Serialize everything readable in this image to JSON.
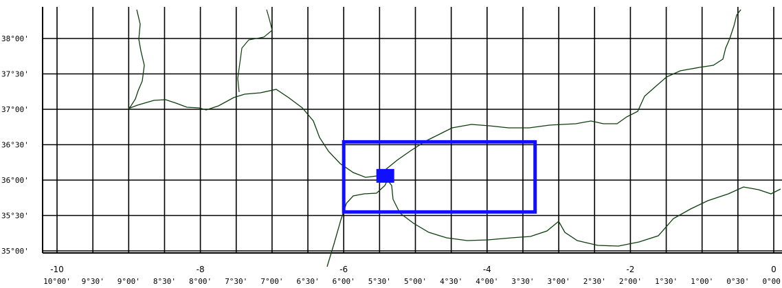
{
  "map": {
    "latitude_labels": [
      "38°00'",
      "37°30'",
      "37°00'",
      "36°30'",
      "36°00'",
      "35°30'",
      "35°00'"
    ],
    "longitude_labels": [
      "10°00'",
      "9°30'",
      "9°00'",
      "8°30'",
      "8°00'",
      "7°30'",
      "7°00'",
      "6°30'",
      "6°00'",
      "5°30'",
      "5°00'",
      "4°30'",
      "4°00'",
      "3°30'",
      "3°00'",
      "2°30'",
      "2°00'",
      "1°30'",
      "1°00'",
      "0°30'",
      "0°00'"
    ],
    "longitude_major_labels": [
      "-10",
      "-8",
      "-6",
      "-4",
      "-2",
      "0"
    ],
    "study_area": {
      "lon_min": -6.0,
      "lon_max": -3.33,
      "lat_min": 35.55,
      "lat_max": 36.54
    },
    "site_marker": {
      "lon": -5.42,
      "lat": 36.06
    },
    "colors": {
      "grid": "#000000",
      "coast": "#0b3d0b",
      "study_area": "#1010ff",
      "site_marker": "#1010ff"
    }
  }
}
